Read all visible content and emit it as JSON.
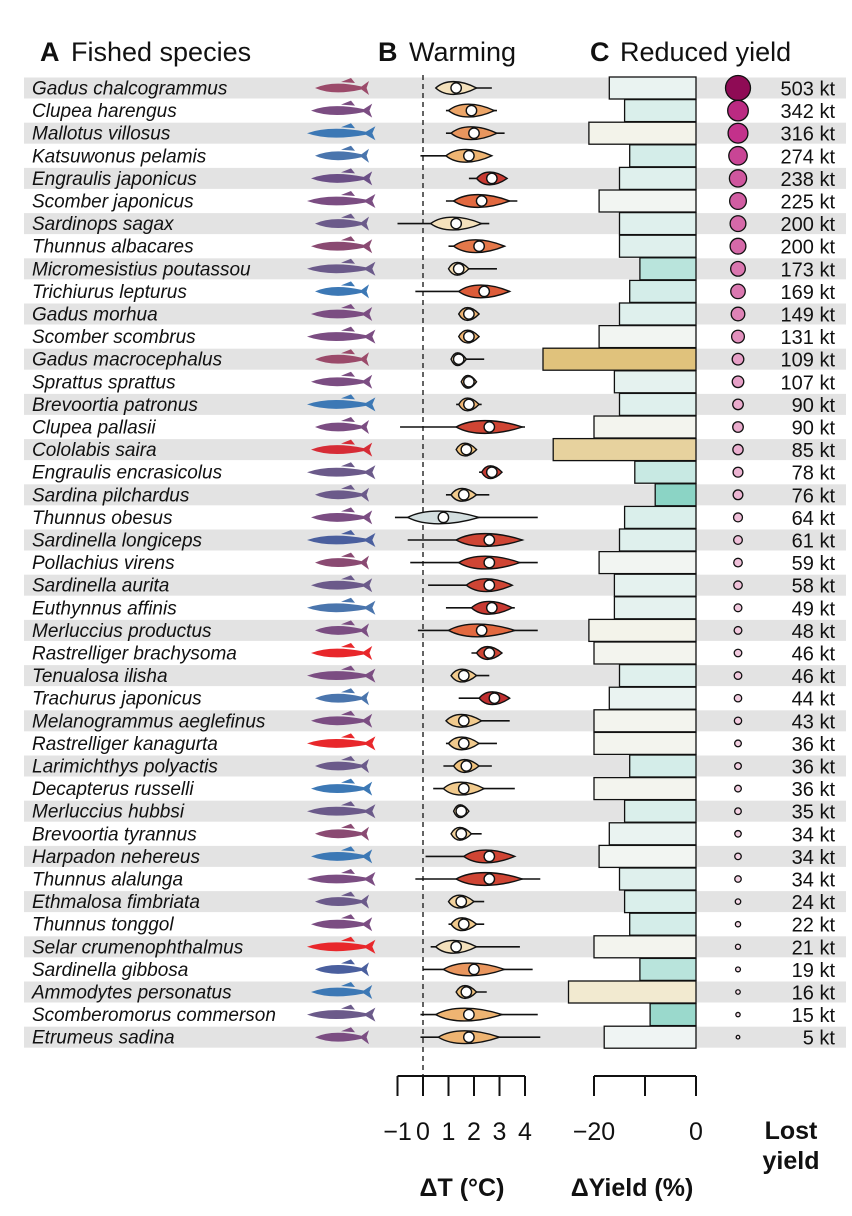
{
  "panels": {
    "a": {
      "letter": "A",
      "title": "Fished species"
    },
    "b": {
      "letter": "B",
      "title": "Warming"
    },
    "c": {
      "letter": "C",
      "title": "Reduced yield"
    }
  },
  "axes": {
    "warming": {
      "title": "ΔT (°C)",
      "ticks": [
        -1,
        0,
        1,
        2,
        3,
        4
      ],
      "tick_labels": [
        "−1",
        "0",
        "1",
        "2",
        "3",
        "4"
      ],
      "range": [
        -1,
        4
      ]
    },
    "yield": {
      "title": "ΔYield (%)",
      "ticks": [
        -20,
        -10,
        0
      ],
      "tick_labels": [
        "−20",
        "",
        "0"
      ],
      "range": [
        -20,
        0
      ]
    },
    "lost": {
      "title_line1": "Lost",
      "title_line2": "yield"
    }
  },
  "colors": {
    "band": "#e3e3e3",
    "warm_scale": [
      "#232c75",
      "#a7c4e0",
      "#f6f3df",
      "#f0c07a",
      "#e0603a",
      "#b2182b"
    ],
    "yield_scale": [
      "#e0c27c",
      "#f5f0dd",
      "#f2f5f4",
      "#d3ede9",
      "#7ccfbd"
    ],
    "bubble_scale": [
      "#fbeaf1",
      "#dc7cb2",
      "#c22f8a",
      "#8f0b55"
    ]
  },
  "chart_data": {
    "type": "composite",
    "title": "",
    "species": [
      {
        "name": "Gadus chalcogrammus",
        "fish_color": "#9b4a6a",
        "median": 1.3,
        "low": 0.5,
        "high": 2.7,
        "spread": 0.8,
        "dyield": -17,
        "lost": 503,
        "lost_label": "503 kt"
      },
      {
        "name": "Clupea harengus",
        "fish_color": "#7b4d82",
        "median": 1.9,
        "low": 0.9,
        "high": 2.9,
        "spread": 0.9,
        "dyield": -14,
        "lost": 342,
        "lost_label": "342 kt"
      },
      {
        "name": "Mallotus villosus",
        "fish_color": "#3c78b5",
        "median": 2.0,
        "low": 0.9,
        "high": 3.2,
        "spread": 0.9,
        "dyield": -21,
        "lost": 316,
        "lost_label": "316 kt"
      },
      {
        "name": "Katsuwonus pelamis",
        "fish_color": "#4a75ad",
        "median": 1.8,
        "low": -0.1,
        "high": 2.6,
        "spread": 0.9,
        "dyield": -13,
        "lost": 274,
        "lost_label": "274 kt"
      },
      {
        "name": "Engraulis japonicus",
        "fish_color": "#6b4f86",
        "median": 2.7,
        "low": 1.8,
        "high": 3.2,
        "spread": 0.6,
        "dyield": -15,
        "lost": 238,
        "lost_label": "238 kt"
      },
      {
        "name": "Scomber japonicus",
        "fish_color": "#7b4d82",
        "median": 2.3,
        "low": 0.9,
        "high": 3.7,
        "spread": 1.1,
        "dyield": -19,
        "lost": 225,
        "lost_label": "225 kt"
      },
      {
        "name": "Sardinops sagax",
        "fish_color": "#6b5a8a",
        "median": 1.3,
        "low": -1.0,
        "high": 2.6,
        "spread": 1.0,
        "dyield": -15,
        "lost": 200,
        "lost_label": "200 kt"
      },
      {
        "name": "Thunnus albacares",
        "fish_color": "#8a4a72",
        "median": 2.2,
        "low": 1.0,
        "high": 3.1,
        "spread": 1.0,
        "dyield": -15,
        "lost": 200,
        "lost_label": "200 kt"
      },
      {
        "name": "Micromesistius poutassou",
        "fish_color": "#6b5a8a",
        "median": 1.4,
        "low": 1.1,
        "high": 2.9,
        "spread": 0.4,
        "dyield": -11,
        "lost": 173,
        "lost_label": "173 kt"
      },
      {
        "name": "Trichiurus lepturus",
        "fish_color": "#3c78b5",
        "median": 2.4,
        "low": -0.3,
        "high": 3.4,
        "spread": 1.0,
        "dyield": -13,
        "lost": 169,
        "lost_label": "169 kt"
      },
      {
        "name": "Gadus morhua",
        "fish_color": "#7b4d82",
        "median": 1.8,
        "low": 1.4,
        "high": 2.2,
        "spread": 0.4,
        "dyield": -15,
        "lost": 149,
        "lost_label": "149 kt"
      },
      {
        "name": "Scomber scombrus",
        "fish_color": "#7b4d82",
        "median": 1.8,
        "low": 1.4,
        "high": 2.2,
        "spread": 0.4,
        "dyield": -19,
        "lost": 131,
        "lost_label": "131 kt"
      },
      {
        "name": "Gadus macrocephalus",
        "fish_color": "#9b4a6a",
        "median": 1.4,
        "low": 1.2,
        "high": 2.4,
        "spread": 0.3,
        "dyield": -30,
        "lost": 109,
        "lost_label": "109 kt"
      },
      {
        "name": "Sprattus sprattus",
        "fish_color": "#7b4d82",
        "median": 1.8,
        "low": 1.5,
        "high": 2.1,
        "spread": 0.3,
        "dyield": -16,
        "lost": 107,
        "lost_label": "107 kt"
      },
      {
        "name": "Brevoortia patronus",
        "fish_color": "#3c78b5",
        "median": 1.8,
        "low": 1.3,
        "high": 2.3,
        "spread": 0.4,
        "dyield": -15,
        "lost": 90,
        "lost_label": "90 kt"
      },
      {
        "name": "Clupea pallasii",
        "fish_color": "#7b4d82",
        "median": 2.6,
        "low": -0.9,
        "high": 4.0,
        "spread": 1.3,
        "dyield": -20,
        "lost": 90,
        "lost_label": "90 kt"
      },
      {
        "name": "Cololabis saira",
        "fish_color": "#d62c36",
        "median": 1.7,
        "low": 1.3,
        "high": 2.1,
        "spread": 0.4,
        "dyield": -28,
        "lost": 85,
        "lost_label": "85 kt"
      },
      {
        "name": "Engraulis encrasicolus",
        "fish_color": "#6b5a8a",
        "median": 2.7,
        "low": 2.2,
        "high": 3.1,
        "spread": 0.4,
        "dyield": -12,
        "lost": 78,
        "lost_label": "78 kt"
      },
      {
        "name": "Sardina pilchardus",
        "fish_color": "#6b5a8a",
        "median": 1.6,
        "low": 0.9,
        "high": 2.6,
        "spread": 0.5,
        "dyield": -8,
        "lost": 76,
        "lost_label": "76 kt"
      },
      {
        "name": "Thunnus obesus",
        "fish_color": "#7b4d82",
        "median": 0.8,
        "low": -1.1,
        "high": 4.5,
        "spread": 1.4,
        "dyield": -14,
        "lost": 64,
        "lost_label": "64 kt"
      },
      {
        "name": "Sardinella longiceps",
        "fish_color": "#4a5f9e",
        "median": 2.6,
        "low": -0.6,
        "high": 3.9,
        "spread": 1.3,
        "dyield": -15,
        "lost": 61,
        "lost_label": "61 kt"
      },
      {
        "name": "Pollachius virens",
        "fish_color": "#8a4a72",
        "median": 2.6,
        "low": -0.5,
        "high": 4.5,
        "spread": 1.2,
        "dyield": -19,
        "lost": 59,
        "lost_label": "59 kt"
      },
      {
        "name": "Sardinella aurita",
        "fish_color": "#6b5a8a",
        "median": 2.6,
        "low": 0.2,
        "high": 3.3,
        "spread": 0.9,
        "dyield": -16,
        "lost": 58,
        "lost_label": "58 kt"
      },
      {
        "name": "Euthynnus affinis",
        "fish_color": "#4a75ad",
        "median": 2.7,
        "low": 0.9,
        "high": 3.6,
        "spread": 0.8,
        "dyield": -16,
        "lost": 49,
        "lost_label": "49 kt"
      },
      {
        "name": "Merluccius productus",
        "fish_color": "#7b4d82",
        "median": 2.3,
        "low": -0.2,
        "high": 4.5,
        "spread": 1.3,
        "dyield": -21,
        "lost": 48,
        "lost_label": "48 kt"
      },
      {
        "name": "Rastrelliger brachysoma",
        "fish_color": "#e8272b",
        "median": 2.6,
        "low": 1.9,
        "high": 3.0,
        "spread": 0.5,
        "dyield": -20,
        "lost": 46,
        "lost_label": "46 kt"
      },
      {
        "name": "Tenualosa ilisha",
        "fish_color": "#7b4d82",
        "median": 1.6,
        "low": 1.3,
        "high": 2.6,
        "spread": 0.5,
        "dyield": -15,
        "lost": 46,
        "lost_label": "46 kt"
      },
      {
        "name": "Trachurus japonicus",
        "fish_color": "#4a75ad",
        "median": 2.8,
        "low": 1.4,
        "high": 3.3,
        "spread": 0.6,
        "dyield": -17,
        "lost": 44,
        "lost_label": "44 kt"
      },
      {
        "name": "Melanogrammus aeglefinus",
        "fish_color": "#7b4d82",
        "median": 1.6,
        "low": 0.9,
        "high": 3.4,
        "spread": 0.7,
        "dyield": -20,
        "lost": 43,
        "lost_label": "43 kt"
      },
      {
        "name": "Rastrelliger kanagurta",
        "fish_color": "#e8272b",
        "median": 1.6,
        "low": 0.9,
        "high": 2.9,
        "spread": 0.6,
        "dyield": -20,
        "lost": 36,
        "lost_label": "36 kt"
      },
      {
        "name": "Larimichthys polyactis",
        "fish_color": "#6b5a8a",
        "median": 1.7,
        "low": 0.8,
        "high": 2.7,
        "spread": 0.5,
        "dyield": -13,
        "lost": 36,
        "lost_label": "36 kt"
      },
      {
        "name": "Decapterus russelli",
        "fish_color": "#3c78b5",
        "median": 1.6,
        "low": 0.4,
        "high": 3.6,
        "spread": 0.8,
        "dyield": -20,
        "lost": 36,
        "lost_label": "36 kt"
      },
      {
        "name": "Merluccius hubbsi",
        "fish_color": "#6b5a8a",
        "median": 1.5,
        "low": 1.3,
        "high": 1.8,
        "spread": 0.3,
        "dyield": -14,
        "lost": 35,
        "lost_label": "35 kt"
      },
      {
        "name": "Brevoortia tyrannus",
        "fish_color": "#8a4a72",
        "median": 1.5,
        "low": 1.2,
        "high": 2.3,
        "spread": 0.4,
        "dyield": -17,
        "lost": 34,
        "lost_label": "34 kt"
      },
      {
        "name": "Harpadon nehereus",
        "fish_color": "#3c78b5",
        "median": 2.6,
        "low": 0.1,
        "high": 3.2,
        "spread": 1.0,
        "dyield": -19,
        "lost": 34,
        "lost_label": "34 kt"
      },
      {
        "name": "Thunnus alalunga",
        "fish_color": "#7b4d82",
        "median": 2.6,
        "low": -0.3,
        "high": 4.6,
        "spread": 1.3,
        "dyield": -15,
        "lost": 34,
        "lost_label": "34 kt"
      },
      {
        "name": "Ethmalosa fimbriata",
        "fish_color": "#6b5a8a",
        "median": 1.5,
        "low": 1.0,
        "high": 2.4,
        "spread": 0.5,
        "dyield": -14,
        "lost": 24,
        "lost_label": "24 kt"
      },
      {
        "name": "Thunnus tonggol",
        "fish_color": "#7b4d82",
        "median": 1.6,
        "low": 1.0,
        "high": 2.4,
        "spread": 0.5,
        "dyield": -13,
        "lost": 22,
        "lost_label": "22 kt"
      },
      {
        "name": "Selar crumenophthalmus",
        "fish_color": "#e8272b",
        "median": 1.3,
        "low": 0.3,
        "high": 3.8,
        "spread": 0.8,
        "dyield": -20,
        "lost": 21,
        "lost_label": "21 kt"
      },
      {
        "name": "Sardinella gibbosa",
        "fish_color": "#4a5f9e",
        "median": 2.0,
        "low": 0.0,
        "high": 4.3,
        "spread": 1.2,
        "dyield": -11,
        "lost": 19,
        "lost_label": "19 kt"
      },
      {
        "name": "Ammodytes personatus",
        "fish_color": "#3c78b5",
        "median": 1.7,
        "low": 1.3,
        "high": 2.5,
        "spread": 0.4,
        "dyield": -25,
        "lost": 16,
        "lost_label": "16 kt"
      },
      {
        "name": "Scomberomorus commerson",
        "fish_color": "#6b5a8a",
        "median": 1.8,
        "low": -0.1,
        "high": 4.5,
        "spread": 1.3,
        "dyield": -9,
        "lost": 15,
        "lost_label": "15 kt"
      },
      {
        "name": "Etrumeus sadina",
        "fish_color": "#7b4d82",
        "median": 1.8,
        "low": -0.1,
        "high": 4.6,
        "spread": 1.2,
        "dyield": -18,
        "lost": 5,
        "lost_label": "5 kt"
      }
    ]
  }
}
